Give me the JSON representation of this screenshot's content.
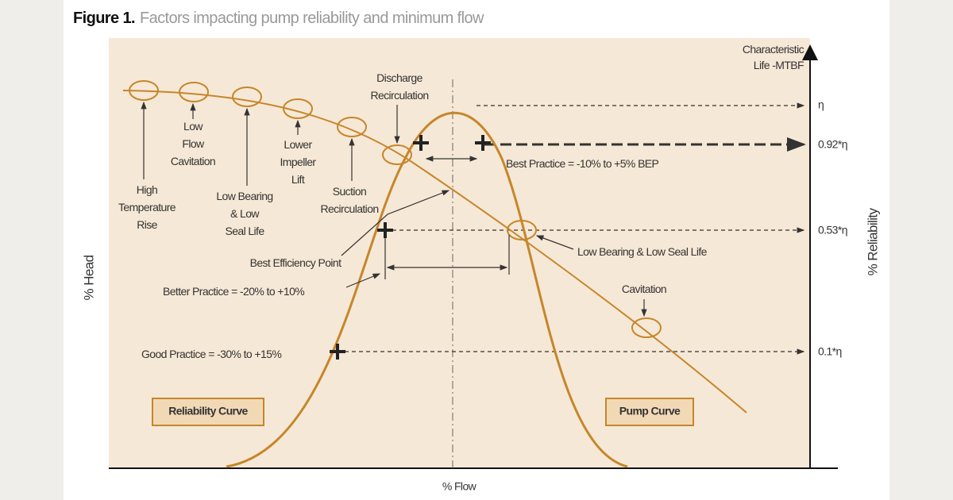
{
  "title": {
    "label": "Figure 1.",
    "text": "Factors impacting pump reliability and minimum flow"
  },
  "axes": {
    "left": "% Head",
    "right": "% Reliability",
    "bottom": "% Flow",
    "top_right": [
      "Characteristic",
      "Life -MTBF"
    ],
    "right_ticks": [
      "η",
      "0.92*η",
      "0.53*η",
      "0.1*η"
    ]
  },
  "annotations": [
    {
      "lines": [
        "High",
        "Temperature",
        "Rise"
      ]
    },
    {
      "lines": [
        "Low",
        "Flow",
        "Cavitation"
      ]
    },
    {
      "lines": [
        "Low Bearing",
        "& Low",
        "Seal Life"
      ]
    },
    {
      "lines": [
        "Lower",
        "Impeller",
        "Lift"
      ]
    },
    {
      "lines": [
        "Suction",
        "Recirculation"
      ]
    },
    {
      "lines": [
        "Discharge",
        "Recirculation"
      ]
    },
    {
      "lines": [
        "Best Practice = -10% to +5% BEP"
      ]
    },
    {
      "lines": [
        "Best Efficiency Point"
      ]
    },
    {
      "lines": [
        "Better Practice = -20% to +10%"
      ]
    },
    {
      "lines": [
        "Good Practice = -30% to +15%"
      ]
    },
    {
      "lines": [
        "Low Bearing & Low Seal Life"
      ]
    },
    {
      "lines": [
        "Cavitation"
      ]
    }
  ],
  "legend_boxes": [
    "Reliability Curve",
    "Pump Curve"
  ]
}
